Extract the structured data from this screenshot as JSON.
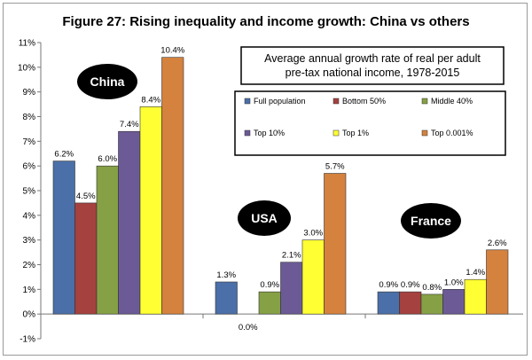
{
  "chart_data": {
    "type": "bar",
    "title": "Figure 27: Rising inequality and income growth: China vs others",
    "subtitle_line1": "Average annual growth rate of real per adult",
    "subtitle_line2": "pre-tax national income, 1978-2015",
    "categories": [
      "China",
      "USA",
      "France"
    ],
    "series": [
      {
        "name": "Full population",
        "color": "#4b6fa8",
        "values": [
          6.2,
          1.3,
          0.9
        ],
        "labels": [
          "6.2%",
          "1.3%",
          "0.9%"
        ]
      },
      {
        "name": "Bottom 50%",
        "color": "#a5413f",
        "values": [
          4.5,
          0.0,
          0.9
        ],
        "labels": [
          "4.5%",
          "0.0%",
          "0.9%"
        ]
      },
      {
        "name": "Middle 40%",
        "color": "#86a045",
        "values": [
          6.0,
          0.9,
          0.8
        ],
        "labels": [
          "6.0%",
          "0.9%",
          "0.8%"
        ]
      },
      {
        "name": "Top 10%",
        "color": "#6c5a96",
        "values": [
          7.4,
          2.1,
          1.0
        ],
        "labels": [
          "7.4%",
          "2.1%",
          "1.0%"
        ]
      },
      {
        "name": "Top 1%",
        "color": "#ffff33",
        "values": [
          8.4,
          3.0,
          1.4
        ],
        "labels": [
          "8.4%",
          "3.0%",
          "1.4%"
        ]
      },
      {
        "name": "Top 0.001%",
        "color": "#d4823e",
        "values": [
          10.4,
          5.7,
          2.6
        ],
        "labels": [
          "10.4%",
          "5.7%",
          "2.6%"
        ]
      }
    ],
    "y_ticks": [
      "-1%",
      "0%",
      "1%",
      "2%",
      "3%",
      "4%",
      "5%",
      "6%",
      "7%",
      "8%",
      "9%",
      "10%",
      "11%"
    ],
    "ylim": [
      -1,
      11
    ],
    "grid": false,
    "legend_placement": "top-right"
  }
}
